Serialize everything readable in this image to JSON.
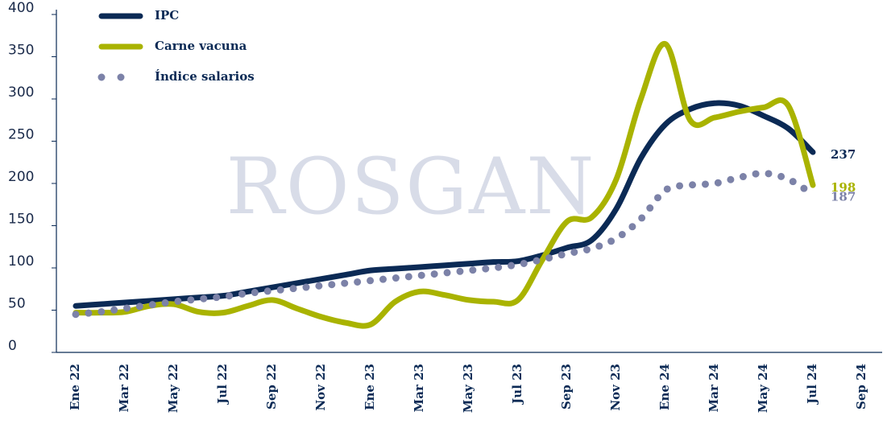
{
  "chart_data": {
    "type": "line",
    "watermark": "ROSGAN",
    "categories": [
      "Ene 22",
      null,
      "Mar 22",
      null,
      "May 22",
      null,
      "Jul 22",
      null,
      "Sep 22",
      null,
      "Nov 22",
      null,
      "Ene 23",
      null,
      "Mar 23",
      null,
      "May 23",
      null,
      "Jul 23",
      null,
      "Sep 23",
      null,
      "Nov 23",
      null,
      "Ene 24",
      null,
      "Mar 24",
      null,
      "May 24",
      null,
      "Jul 24",
      null,
      "Sep 24"
    ],
    "series": [
      {
        "name": "IPC",
        "color": "#0b2a55",
        "style": "solid",
        "values": [
          55,
          57,
          59,
          61,
          63,
          65,
          67,
          72,
          77,
          82,
          87,
          92,
          97,
          99,
          101,
          103,
          105,
          107,
          108,
          115,
          124,
          133,
          170,
          230,
          270,
          288,
          295,
          292,
          280,
          265,
          237,
          null,
          null
        ]
      },
      {
        "name": "Carne vacuna",
        "color": "#a9b300",
        "style": "solid",
        "values": [
          47,
          47,
          48,
          55,
          57,
          48,
          47,
          55,
          62,
          52,
          42,
          35,
          33,
          60,
          72,
          68,
          62,
          60,
          62,
          110,
          155,
          160,
          205,
          300,
          365,
          275,
          278,
          285,
          290,
          292,
          198,
          null,
          null
        ]
      },
      {
        "name": "Índice salarios",
        "color": "#7c82a8",
        "style": "dotted",
        "values": [
          45,
          48,
          52,
          56,
          60,
          63,
          66,
          70,
          73,
          76,
          79,
          82,
          85,
          88,
          91,
          94,
          97,
          100,
          104,
          110,
          117,
          123,
          135,
          158,
          192,
          198,
          200,
          207,
          212,
          205,
          187,
          null,
          null
        ]
      }
    ],
    "ylim": [
      0,
      400
    ],
    "yticks": [
      0,
      50,
      100,
      150,
      200,
      250,
      300,
      350,
      400
    ],
    "legend": "top-left"
  }
}
